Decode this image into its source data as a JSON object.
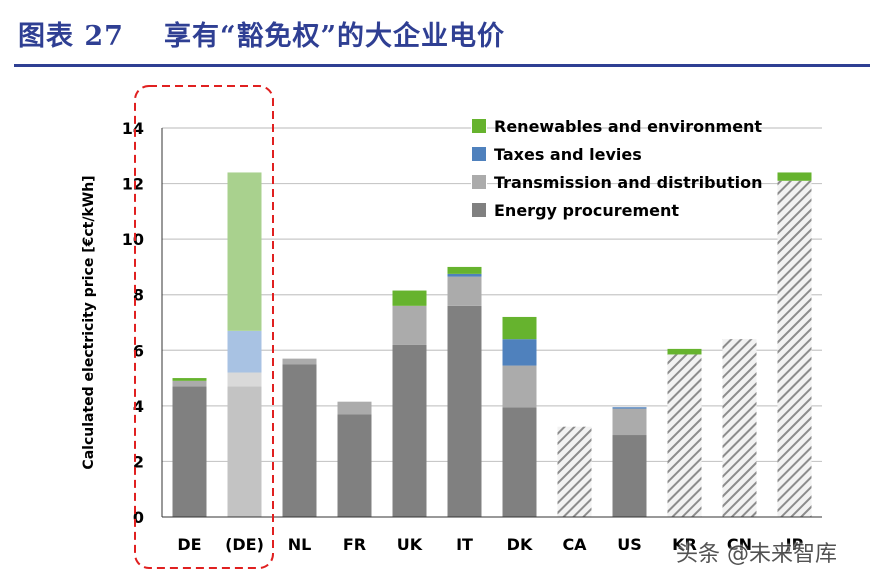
{
  "figure": {
    "label": "图表 27",
    "title": "享有“豁免权”的大企业电价",
    "watermark": "头条 @未来智库"
  },
  "colors": {
    "title": "#2f3f93",
    "energy": "#808080",
    "transmission": "#ababab",
    "taxes": "#4f81bd",
    "renewables": "#66b32e",
    "light_energy": "#c3c3c3",
    "light_transmission": "#d9d9d9",
    "light_taxes": "#a8c2e3",
    "light_renewables": "#a9d18e",
    "highlight_box": "#e02020",
    "grid": "#c8c8c8"
  },
  "chart_data": {
    "type": "bar",
    "stacked": true,
    "ylabel": "Calculated electricity price [€ct/kWh]",
    "ylim": [
      0,
      14
    ],
    "yticks": [
      0,
      2,
      4,
      6,
      8,
      10,
      12,
      14
    ],
    "grid": true,
    "legend_position": "top-right",
    "categories": [
      "DE",
      "(DE)",
      "NL",
      "FR",
      "UK",
      "IT",
      "DK",
      "CA",
      "US",
      "KR",
      "CN",
      "JP"
    ],
    "series": [
      {
        "name": "Renewables and environment",
        "values": [
          0.1,
          5.7,
          0,
          0,
          0.55,
          0.25,
          0.8,
          0,
          0,
          0.2,
          0,
          0.3
        ]
      },
      {
        "name": "Taxes and levies",
        "values": [
          0,
          1.5,
          0,
          0,
          0,
          0.1,
          0.95,
          0,
          0.05,
          0,
          0,
          0
        ]
      },
      {
        "name": "Transmission and distribution",
        "values": [
          0.2,
          0.5,
          0.2,
          0.45,
          1.4,
          1.05,
          1.5,
          0,
          0.95,
          0,
          0,
          0
        ]
      },
      {
        "name": "Energy procurement",
        "values": [
          4.7,
          4.7,
          5.5,
          3.7,
          6.2,
          7.6,
          3.95,
          0,
          2.95,
          0,
          0,
          0
        ]
      }
    ],
    "aggregate_only": {
      "KR": 5.85,
      "CN": 6.4,
      "JP": 12.1,
      "CA": 3.25
    },
    "highlighted_categories": [
      "DE",
      "(DE)"
    ],
    "light_categories": [
      "(DE)"
    ],
    "hatched_categories": [
      "CA",
      "KR",
      "CN",
      "JP"
    ]
  }
}
